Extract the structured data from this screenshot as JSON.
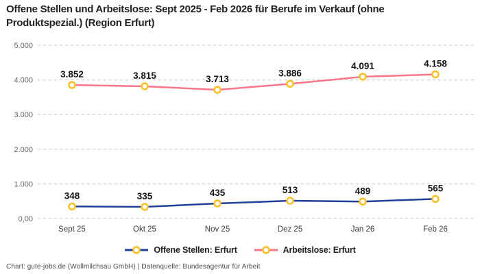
{
  "title": "Offene Stellen und Arbeitslose: Sept 2025 - Feb 2026 für Berufe im Verkauf (ohne Produktspezial.) (Region Erfurt)",
  "footer": "Chart: gute-jobs.de (Wollmilchsau GmbH) | Datenquelle: Bundesagentur für Arbeit",
  "colors": {
    "background": "#ffffff",
    "title_text": "#222222",
    "grid_line": "#c9c9c9",
    "y_tick_text": "#666666",
    "x_tick_text": "#3d3d3d",
    "data_label_text": "#141414",
    "marker_stroke": "#fbbf24",
    "marker_fill": "#ffffff",
    "series_blue": "#21409a",
    "series_pink": "#fa7589",
    "footer_text": "#4a4a4a"
  },
  "chart_data": {
    "type": "line",
    "title": "Offene Stellen und Arbeitslose: Sept 2025 - Feb 2026 für Berufe im Verkauf (ohne Produktspezial.) (Region Erfurt)",
    "categories": [
      "Sept 25",
      "Okt 25",
      "Nov 25",
      "Dez 25",
      "Jan 26",
      "Feb 26"
    ],
    "series": [
      {
        "name": "Offene Stellen: Erfurt",
        "color": "#21409a",
        "values": [
          348,
          335,
          435,
          513,
          489,
          565
        ],
        "labels": [
          "348",
          "335",
          "435",
          "513",
          "489",
          "565"
        ]
      },
      {
        "name": "Arbeitslose: Erfurt",
        "color": "#fa7589",
        "values": [
          3852,
          3815,
          3713,
          3886,
          4091,
          4158
        ],
        "labels": [
          "3.852",
          "3.815",
          "3.713",
          "3.886",
          "4.091",
          "4.158"
        ]
      }
    ],
    "ylim": [
      0,
      5000
    ],
    "y_ticks": [
      {
        "value": 0,
        "label": "0,00"
      },
      {
        "value": 1000,
        "label": "1.000"
      },
      {
        "value": 2000,
        "label": "2.000"
      },
      {
        "value": 3000,
        "label": "3.000"
      },
      {
        "value": 4000,
        "label": "4.000"
      },
      {
        "value": 5000,
        "label": "5.000"
      }
    ],
    "grid": "horizontal-dashed",
    "legend_position": "bottom-center",
    "marker": "open-circle",
    "marker_color": "#fbbf24"
  }
}
